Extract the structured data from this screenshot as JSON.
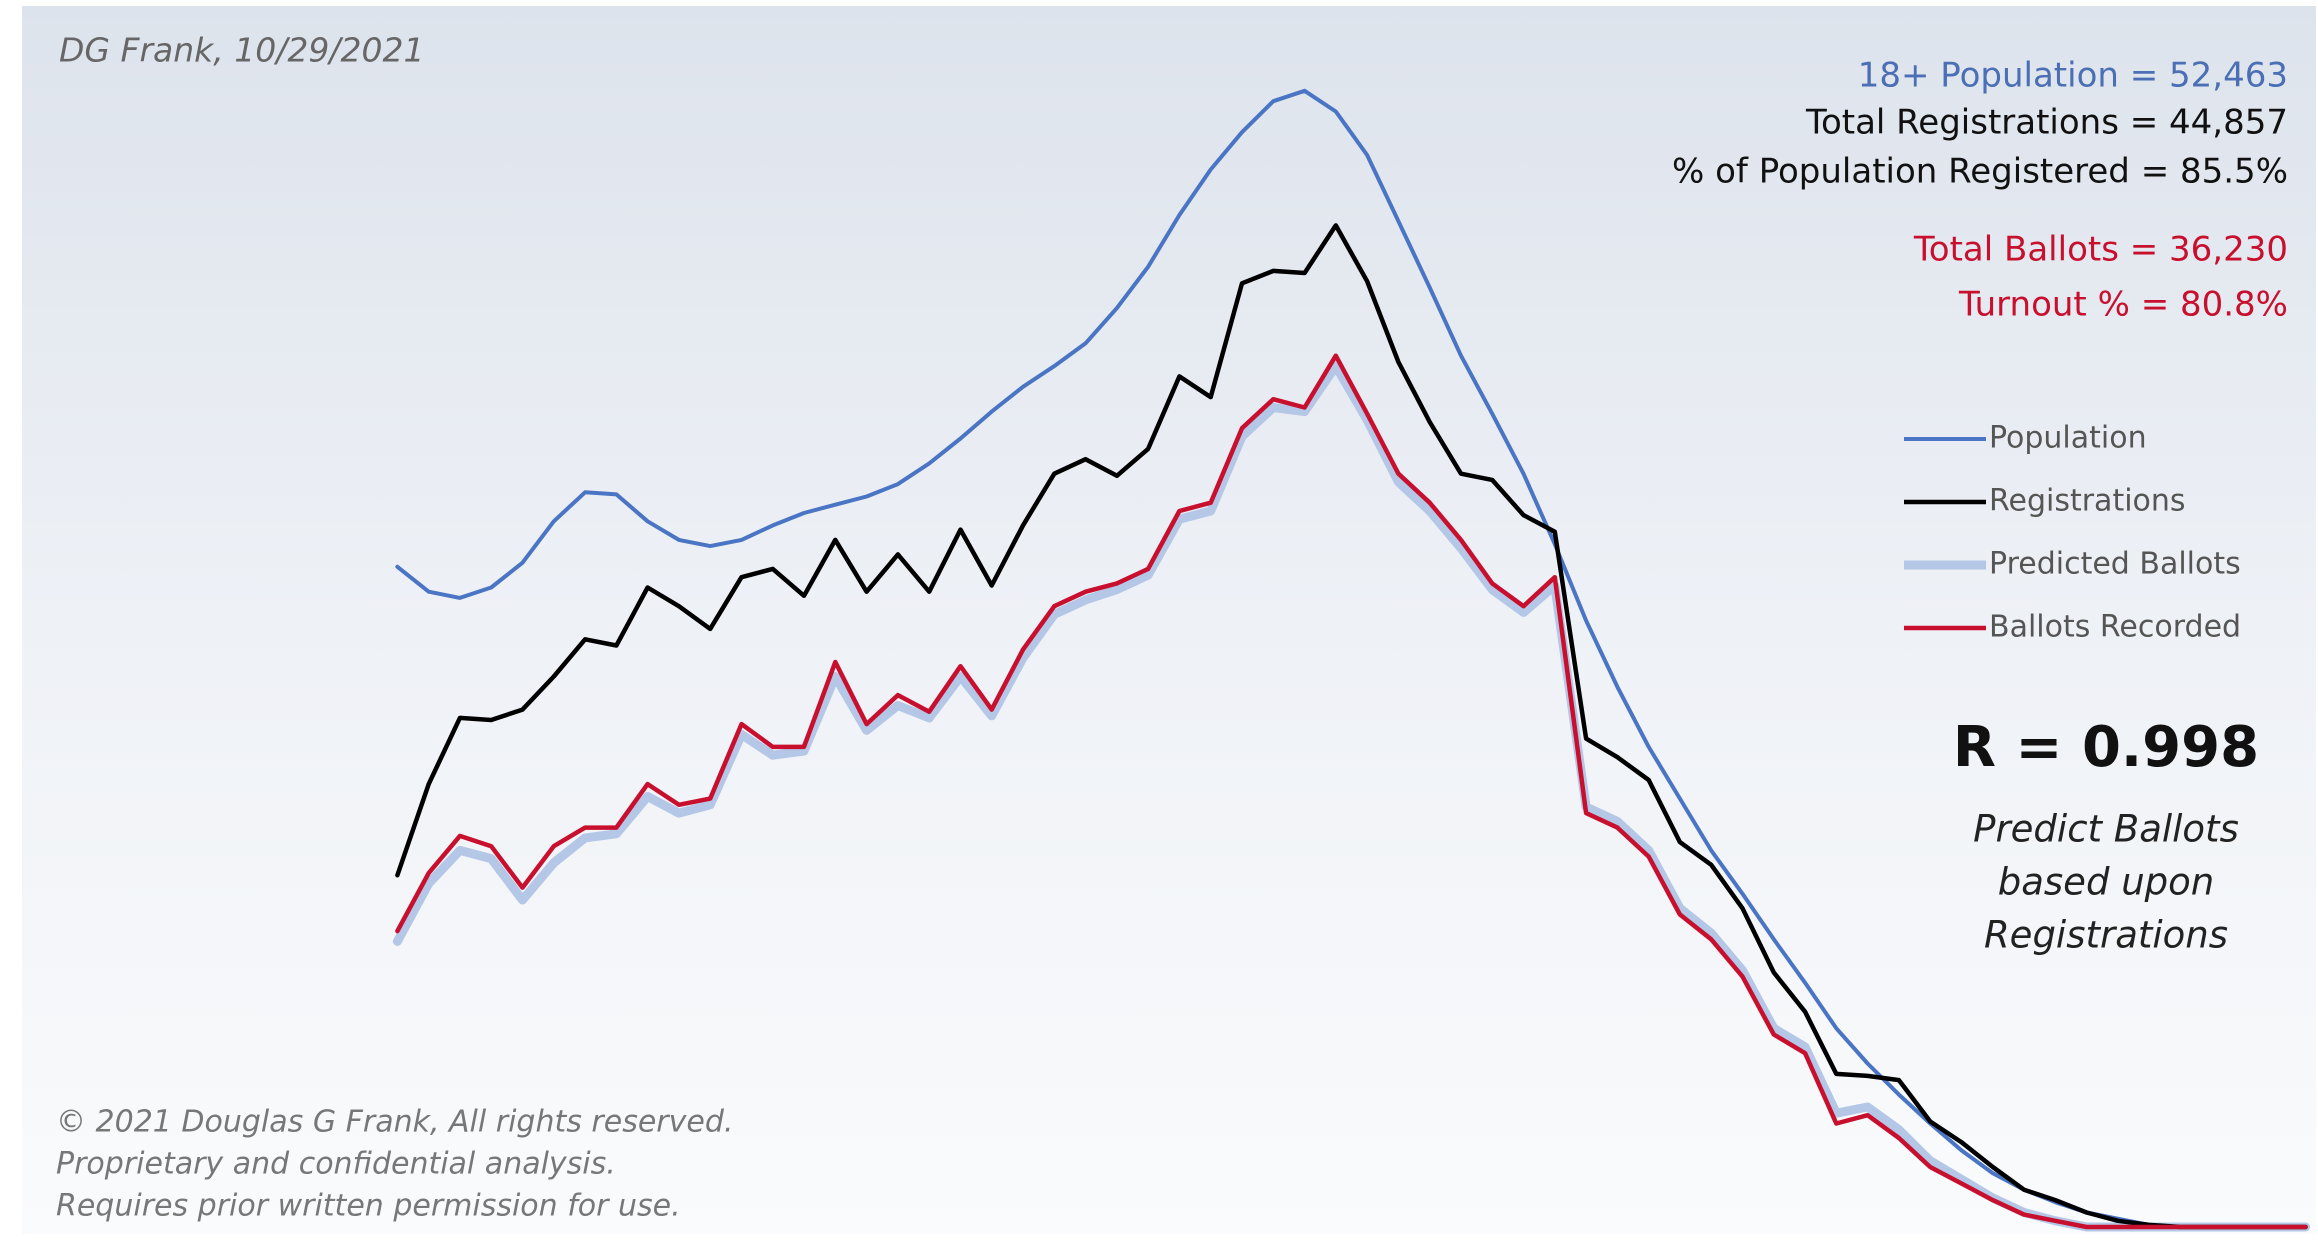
{
  "chart_data": {
    "type": "line",
    "title": "DG Frank, 10/29/2021",
    "stats": [
      {
        "text": "18+ Population = 52,463",
        "color": "#4a6fb5"
      },
      {
        "text": "Total Registrations = 44,857",
        "color": "#111111"
      },
      {
        "text": "% of Population Registered = 85.5%",
        "color": "#111111"
      },
      {
        "text": "Total Ballots = 36,230",
        "color": "#c8102e"
      },
      {
        "text": "Turnout % = 80.8%",
        "color": "#c8102e"
      }
    ],
    "correlation": "R = 0.998",
    "note": [
      "Predict Ballots",
      "based upon",
      "Registrations"
    ],
    "footer": [
      "© 2021 Douglas G Frank, All rights reserved.",
      "Proprietary and confidential analysis.",
      "Requires prior written permission for use."
    ],
    "x": [
      1.8,
      1.95,
      2.1,
      2.25,
      2.4,
      2.55,
      2.7,
      2.85,
      3.0,
      3.15,
      3.3,
      3.45,
      3.6,
      3.75,
      3.9,
      4.05,
      4.2,
      4.35,
      4.5,
      4.65,
      4.8,
      4.95,
      5.1,
      5.25,
      5.4,
      5.55,
      5.7,
      5.85,
      6.0,
      6.15,
      6.3,
      6.45,
      6.6,
      6.75,
      6.9,
      7.05,
      7.2,
      7.35,
      7.5,
      7.65,
      7.8,
      7.95,
      8.1,
      8.25,
      8.4,
      8.55,
      8.7,
      8.85,
      9.0,
      9.15,
      9.3,
      9.45,
      9.6,
      9.75,
      9.9,
      10.05,
      10.2,
      10.35,
      10.5,
      10.65,
      10.8,
      10.95
    ],
    "series": [
      {
        "name": "Population",
        "color": "#4a74c4",
        "line_width": 4,
        "values": [
          3.19,
          3.07,
          3.04,
          3.09,
          3.21,
          3.41,
          3.55,
          3.54,
          3.41,
          3.32,
          3.29,
          3.32,
          3.39,
          3.45,
          3.49,
          3.53,
          3.59,
          3.69,
          3.81,
          3.94,
          4.06,
          4.16,
          4.27,
          4.44,
          4.64,
          4.89,
          5.11,
          5.29,
          5.44,
          5.49,
          5.39,
          5.18,
          4.86,
          4.54,
          4.21,
          3.93,
          3.64,
          3.3,
          2.93,
          2.61,
          2.32,
          2.07,
          1.82,
          1.61,
          1.39,
          1.18,
          0.96,
          0.79,
          0.64,
          0.5,
          0.37,
          0.26,
          0.18,
          0.12,
          0.07,
          0.04,
          0.01,
          0,
          0,
          0,
          0,
          0
        ]
      },
      {
        "name": "Registrations",
        "color": "#000000",
        "line_width": 4.5,
        "values": [
          1.7,
          2.14,
          2.46,
          2.45,
          2.5,
          2.66,
          2.84,
          2.81,
          3.09,
          3.0,
          2.89,
          3.14,
          3.18,
          3.05,
          3.32,
          3.07,
          3.25,
          3.07,
          3.37,
          3.1,
          3.39,
          3.64,
          3.71,
          3.63,
          3.76,
          4.11,
          4.01,
          4.56,
          4.62,
          4.61,
          4.84,
          4.57,
          4.18,
          3.89,
          3.64,
          3.61,
          3.44,
          3.36,
          2.36,
          2.27,
          2.16,
          1.86,
          1.75,
          1.54,
          1.23,
          1.04,
          0.74,
          0.73,
          0.71,
          0.51,
          0.41,
          0.29,
          0.18,
          0.13,
          0.07,
          0.03,
          0.01,
          0,
          0,
          0,
          0,
          0
        ]
      },
      {
        "name": "Predicted Ballots",
        "color": "#b4c7e7",
        "line_width": 9,
        "values": [
          1.38,
          1.66,
          1.82,
          1.78,
          1.58,
          1.76,
          1.88,
          1.9,
          2.08,
          2.0,
          2.04,
          2.38,
          2.28,
          2.3,
          2.66,
          2.4,
          2.52,
          2.46,
          2.66,
          2.47,
          2.75,
          2.96,
          3.03,
          3.08,
          3.15,
          3.42,
          3.46,
          3.82,
          3.96,
          3.94,
          4.16,
          3.9,
          3.6,
          3.46,
          3.28,
          3.08,
          2.97,
          3.1,
          2.03,
          1.96,
          1.82,
          1.54,
          1.42,
          1.24,
          0.96,
          0.87,
          0.55,
          0.58,
          0.47,
          0.32,
          0.23,
          0.14,
          0.07,
          0.03,
          0,
          0,
          0,
          0,
          0,
          0,
          0,
          0
        ]
      },
      {
        "name": "Ballots Recorded",
        "color": "#c8102e",
        "line_width": 4.5,
        "values": [
          1.43,
          1.71,
          1.89,
          1.84,
          1.64,
          1.84,
          1.93,
          1.93,
          2.14,
          2.04,
          2.07,
          2.43,
          2.32,
          2.32,
          2.73,
          2.43,
          2.57,
          2.49,
          2.71,
          2.5,
          2.79,
          3.0,
          3.07,
          3.11,
          3.18,
          3.46,
          3.5,
          3.86,
          4.0,
          3.96,
          4.21,
          3.93,
          3.64,
          3.5,
          3.32,
          3.11,
          3.0,
          3.14,
          2.0,
          1.93,
          1.79,
          1.51,
          1.39,
          1.21,
          0.93,
          0.84,
          0.5,
          0.54,
          0.43,
          0.29,
          0.21,
          0.13,
          0.06,
          0.03,
          0,
          0,
          0,
          0,
          0,
          0,
          0,
          0
        ]
      }
    ],
    "xlim": [
      0,
      11
    ],
    "xticks": [
      1,
      2,
      3,
      4,
      5,
      6,
      7,
      8,
      9,
      10
    ],
    "ylim": [
      0,
      5.9
    ],
    "yticks": [
      0,
      1,
      2,
      3,
      4,
      5
    ],
    "grid": true
  }
}
